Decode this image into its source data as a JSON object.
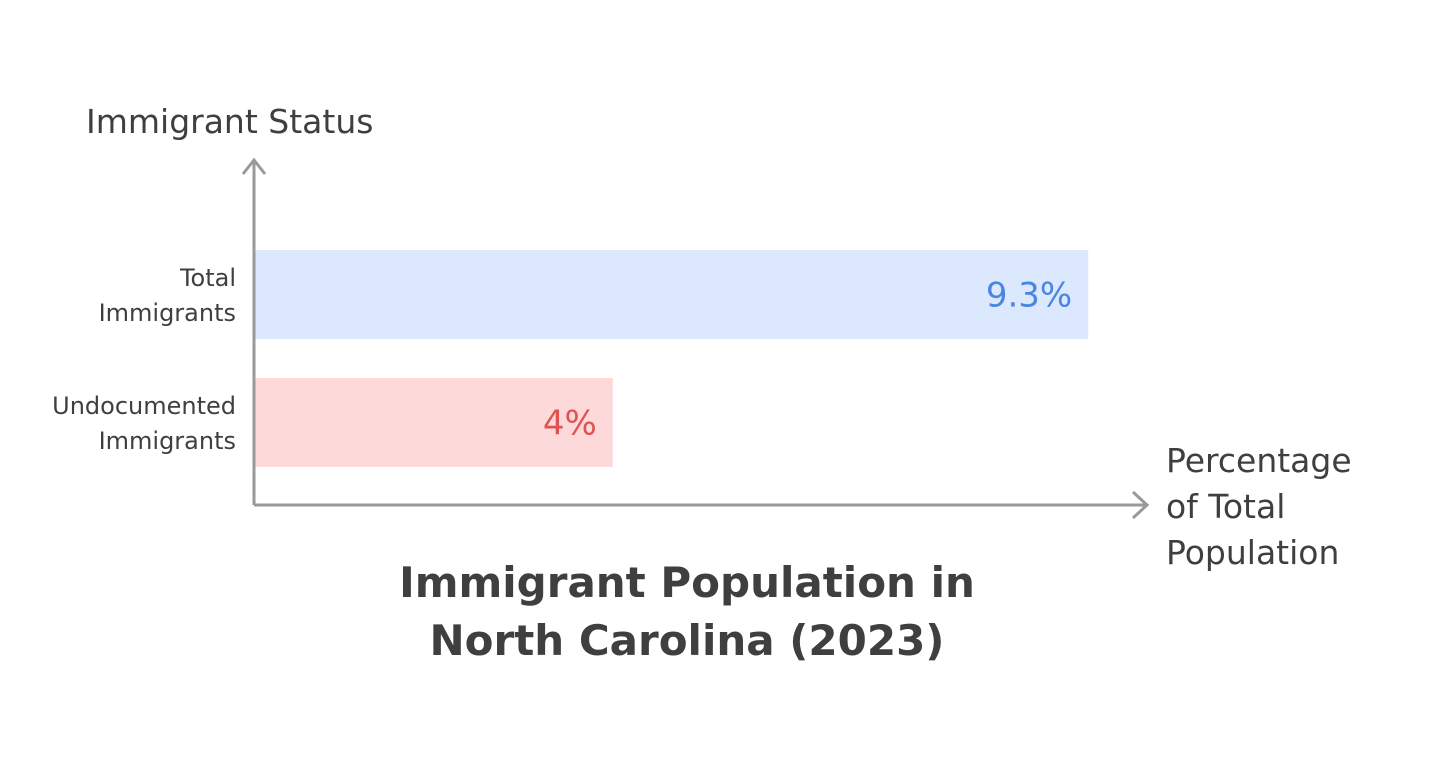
{
  "chart_data": {
    "type": "bar",
    "orientation": "horizontal",
    "title": [
      "Immigrant Population in",
      "North Carolina (2023)"
    ],
    "ylabel": "Immigrant Status",
    "xlabel": [
      "Percentage",
      "of Total",
      "Population"
    ],
    "categories": [
      {
        "lines": [
          "Total",
          "Immigrants"
        ]
      },
      {
        "lines": [
          "Undocumented",
          "Immigrants"
        ]
      }
    ],
    "values": [
      9.3,
      4
    ],
    "value_labels": [
      "9.3%",
      "4%"
    ],
    "bar_colors": [
      "#dbe8fd",
      "#fed9d9"
    ],
    "label_colors": [
      "#4a86e0",
      "#e05252"
    ],
    "axis_color": "#999999",
    "xlim": [
      0,
      10
    ],
    "grid": false
  }
}
